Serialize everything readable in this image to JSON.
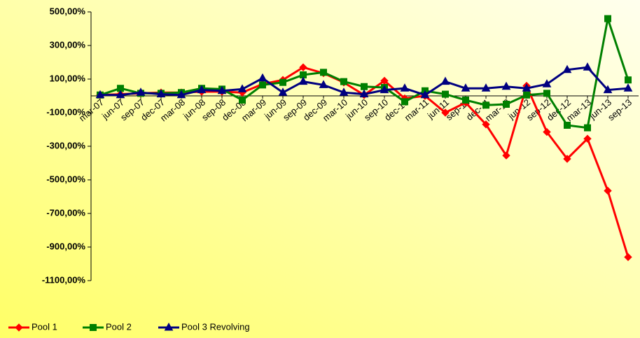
{
  "chart_data": {
    "type": "line",
    "categories": [
      "mar-07",
      "jun-07",
      "sep-07",
      "dec-07",
      "mar-08",
      "jun-08",
      "sep-08",
      "dec-08",
      "mar-09",
      "jun-09",
      "sep-09",
      "dec-09",
      "mar-10",
      "jun-10",
      "sep-10",
      "dec-10",
      "mar-11",
      "jun-11",
      "sep-11",
      "dec-11",
      "mar-12",
      "jun-12",
      "sep-12",
      "dec-12",
      "mar-13",
      "jun-13",
      "sep-13"
    ],
    "series": [
      {
        "name": "Pool 1",
        "color": "#ff0000",
        "marker": "diamond",
        "values": [
          5,
          10,
          15,
          20,
          20,
          25,
          25,
          20,
          70,
          95,
          170,
          135,
          80,
          5,
          90,
          -15,
          0,
          -100,
          -40,
          -170,
          -355,
          60,
          -215,
          -375,
          -255,
          -565,
          -960
        ]
      },
      {
        "name": "Pool 2",
        "color": "#008000",
        "marker": "square",
        "values": [
          5,
          45,
          15,
          15,
          20,
          45,
          40,
          -25,
          65,
          80,
          125,
          140,
          85,
          55,
          50,
          -35,
          30,
          10,
          -25,
          -55,
          -50,
          5,
          15,
          -175,
          -190,
          460,
          95
        ]
      },
      {
        "name": "Pool 3 Revolving",
        "color": "#000080",
        "marker": "triangle",
        "values": [
          5,
          5,
          20,
          10,
          5,
          35,
          30,
          40,
          105,
          20,
          85,
          65,
          20,
          10,
          35,
          45,
          5,
          85,
          45,
          45,
          55,
          45,
          70,
          155,
          170,
          35,
          45
        ]
      }
    ],
    "ylim": [
      -1100,
      500
    ],
    "yticks": [
      {
        "value": 500,
        "label": "500,00%"
      },
      {
        "value": 300,
        "label": "300,00%"
      },
      {
        "value": 100,
        "label": "100,00%"
      },
      {
        "value": -100,
        "label": "-100,00%"
      },
      {
        "value": -300,
        "label": "-300,00%"
      },
      {
        "value": -500,
        "label": "-500,00%"
      },
      {
        "value": -700,
        "label": "-700,00%"
      },
      {
        "value": -900,
        "label": "-900,00%"
      },
      {
        "value": -1100,
        "label": "-1100,00%"
      }
    ],
    "legend": "bottom-left"
  }
}
